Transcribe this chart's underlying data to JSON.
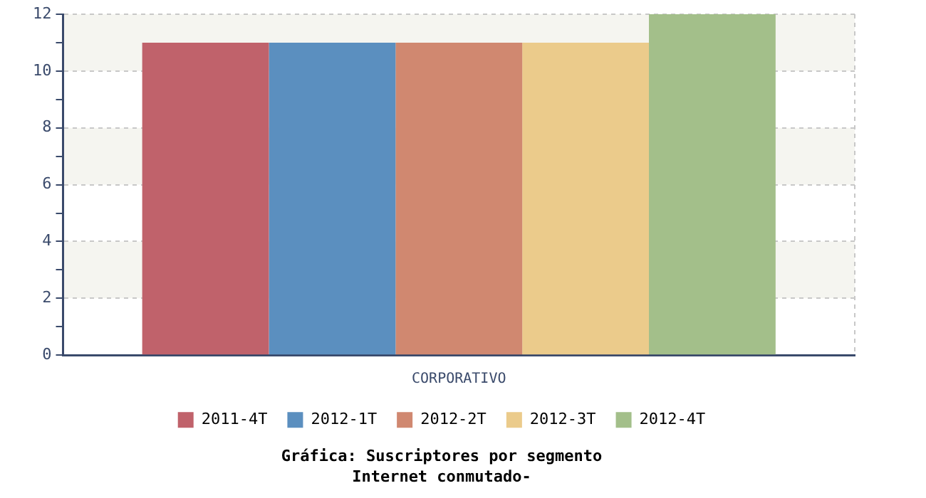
{
  "chart_data": {
    "type": "bar",
    "title": "Gráfica: Suscriptores por segmento",
    "subtitle": "Internet conmutado-",
    "categories": [
      "CORPORATIVO"
    ],
    "series": [
      {
        "name": "2011-4T",
        "color": "#c0626b",
        "values": [
          11
        ]
      },
      {
        "name": "2012-1T",
        "color": "#5b8fbf",
        "values": [
          11
        ]
      },
      {
        "name": "2012-2T",
        "color": "#d08870",
        "values": [
          11
        ]
      },
      {
        "name": "2012-3T",
        "color": "#ebcb8b",
        "values": [
          11
        ]
      },
      {
        "name": "2012-4T",
        "color": "#a3bf8a",
        "values": [
          12
        ]
      }
    ],
    "ylim": [
      0,
      12
    ],
    "yticks": [
      0,
      {
        "value": 1,
        "label": null
      },
      2,
      {
        "value": 3,
        "label": null
      },
      4,
      {
        "value": 5,
        "label": null
      },
      6,
      {
        "value": 7,
        "label": null
      },
      8,
      {
        "value": 9,
        "label": null
      },
      10,
      {
        "value": 11,
        "label": null
      },
      12
    ],
    "grid": "y",
    "legend": "bottom"
  }
}
